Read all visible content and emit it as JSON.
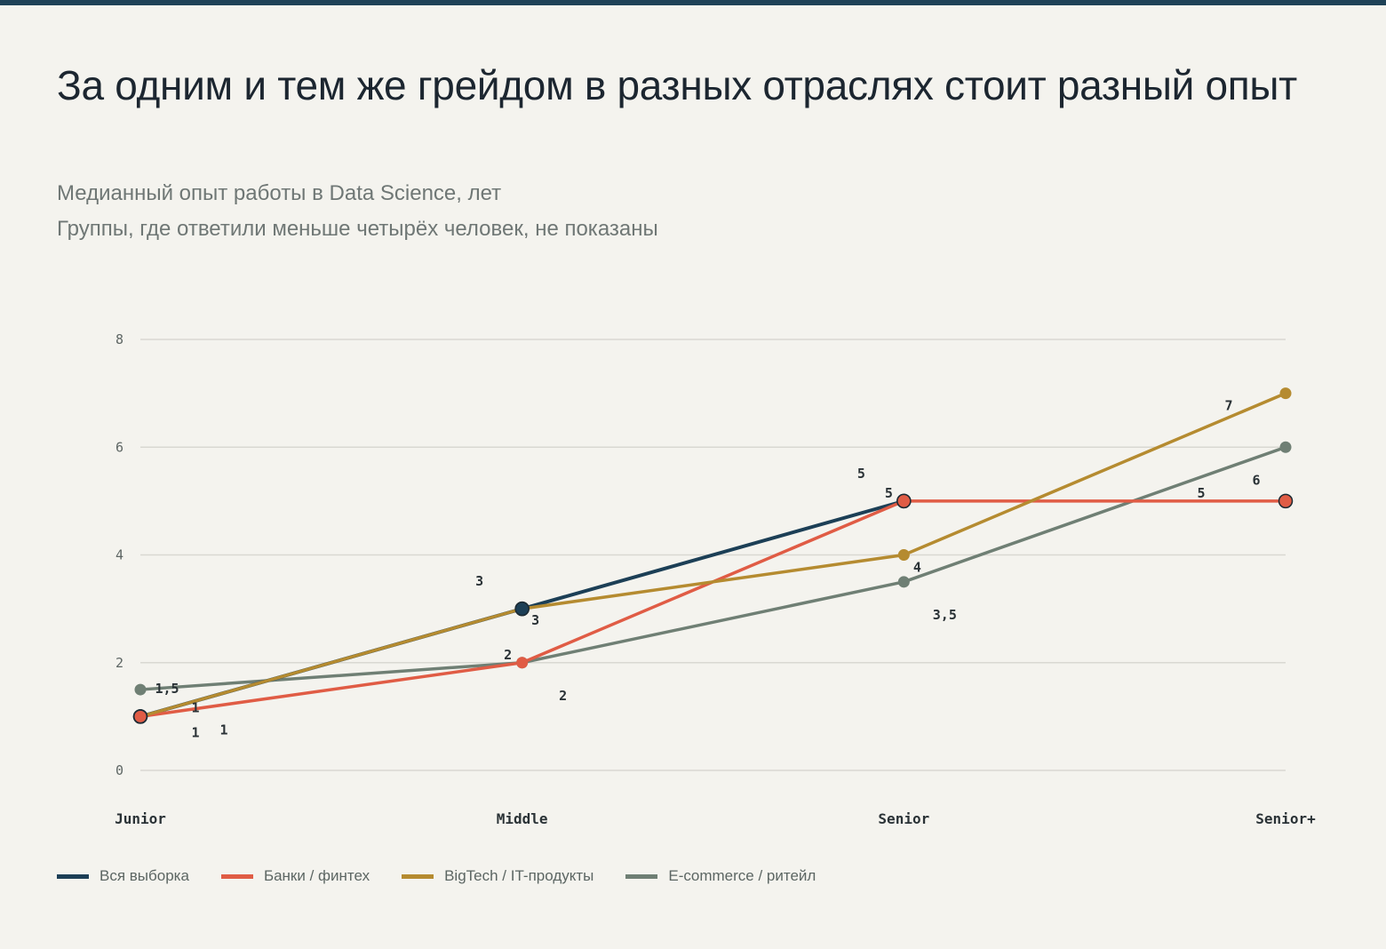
{
  "header": {
    "title": "За одним и тем же грейдом в разных отраслях стоит разный опыт",
    "subtitle_1": "Медианный опыт работы в Data Science, лет",
    "subtitle_2": "Группы, где ответили меньше четырёх человек, не показаны"
  },
  "colors": {
    "background": "#f4f3ee",
    "accent_bar": "#1f4257",
    "grid": "#d9d8d2"
  },
  "chart_data": {
    "type": "line",
    "categories": [
      "Junior",
      "Middle",
      "Senior",
      "Senior+"
    ],
    "ylim": [
      0,
      8
    ],
    "yticks": [
      "0",
      "2",
      "4",
      "6",
      "8"
    ],
    "grid": true,
    "legend_position": "bottom",
    "series": [
      {
        "name": "Вся выборка",
        "color": "#1c3f56",
        "values": [
          1,
          3,
          5,
          null
        ],
        "labels": [
          "1",
          "3",
          "5",
          ""
        ]
      },
      {
        "name": "Банки / финтех",
        "color": "#e05c45",
        "values": [
          1,
          2,
          5,
          5
        ],
        "labels": [
          "1",
          "2",
          "5",
          "5"
        ]
      },
      {
        "name": "BigTech / IT-продукты",
        "color": "#b58b30",
        "values": [
          1,
          3,
          4,
          7
        ],
        "labels": [
          "1",
          "3",
          "4",
          "7"
        ]
      },
      {
        "name": "E-commerce / ритейл",
        "color": "#6f7f74",
        "values": [
          1.5,
          2,
          3.5,
          6
        ],
        "labels": [
          "1,5",
          "2",
          "3,5",
          "6"
        ]
      }
    ]
  }
}
